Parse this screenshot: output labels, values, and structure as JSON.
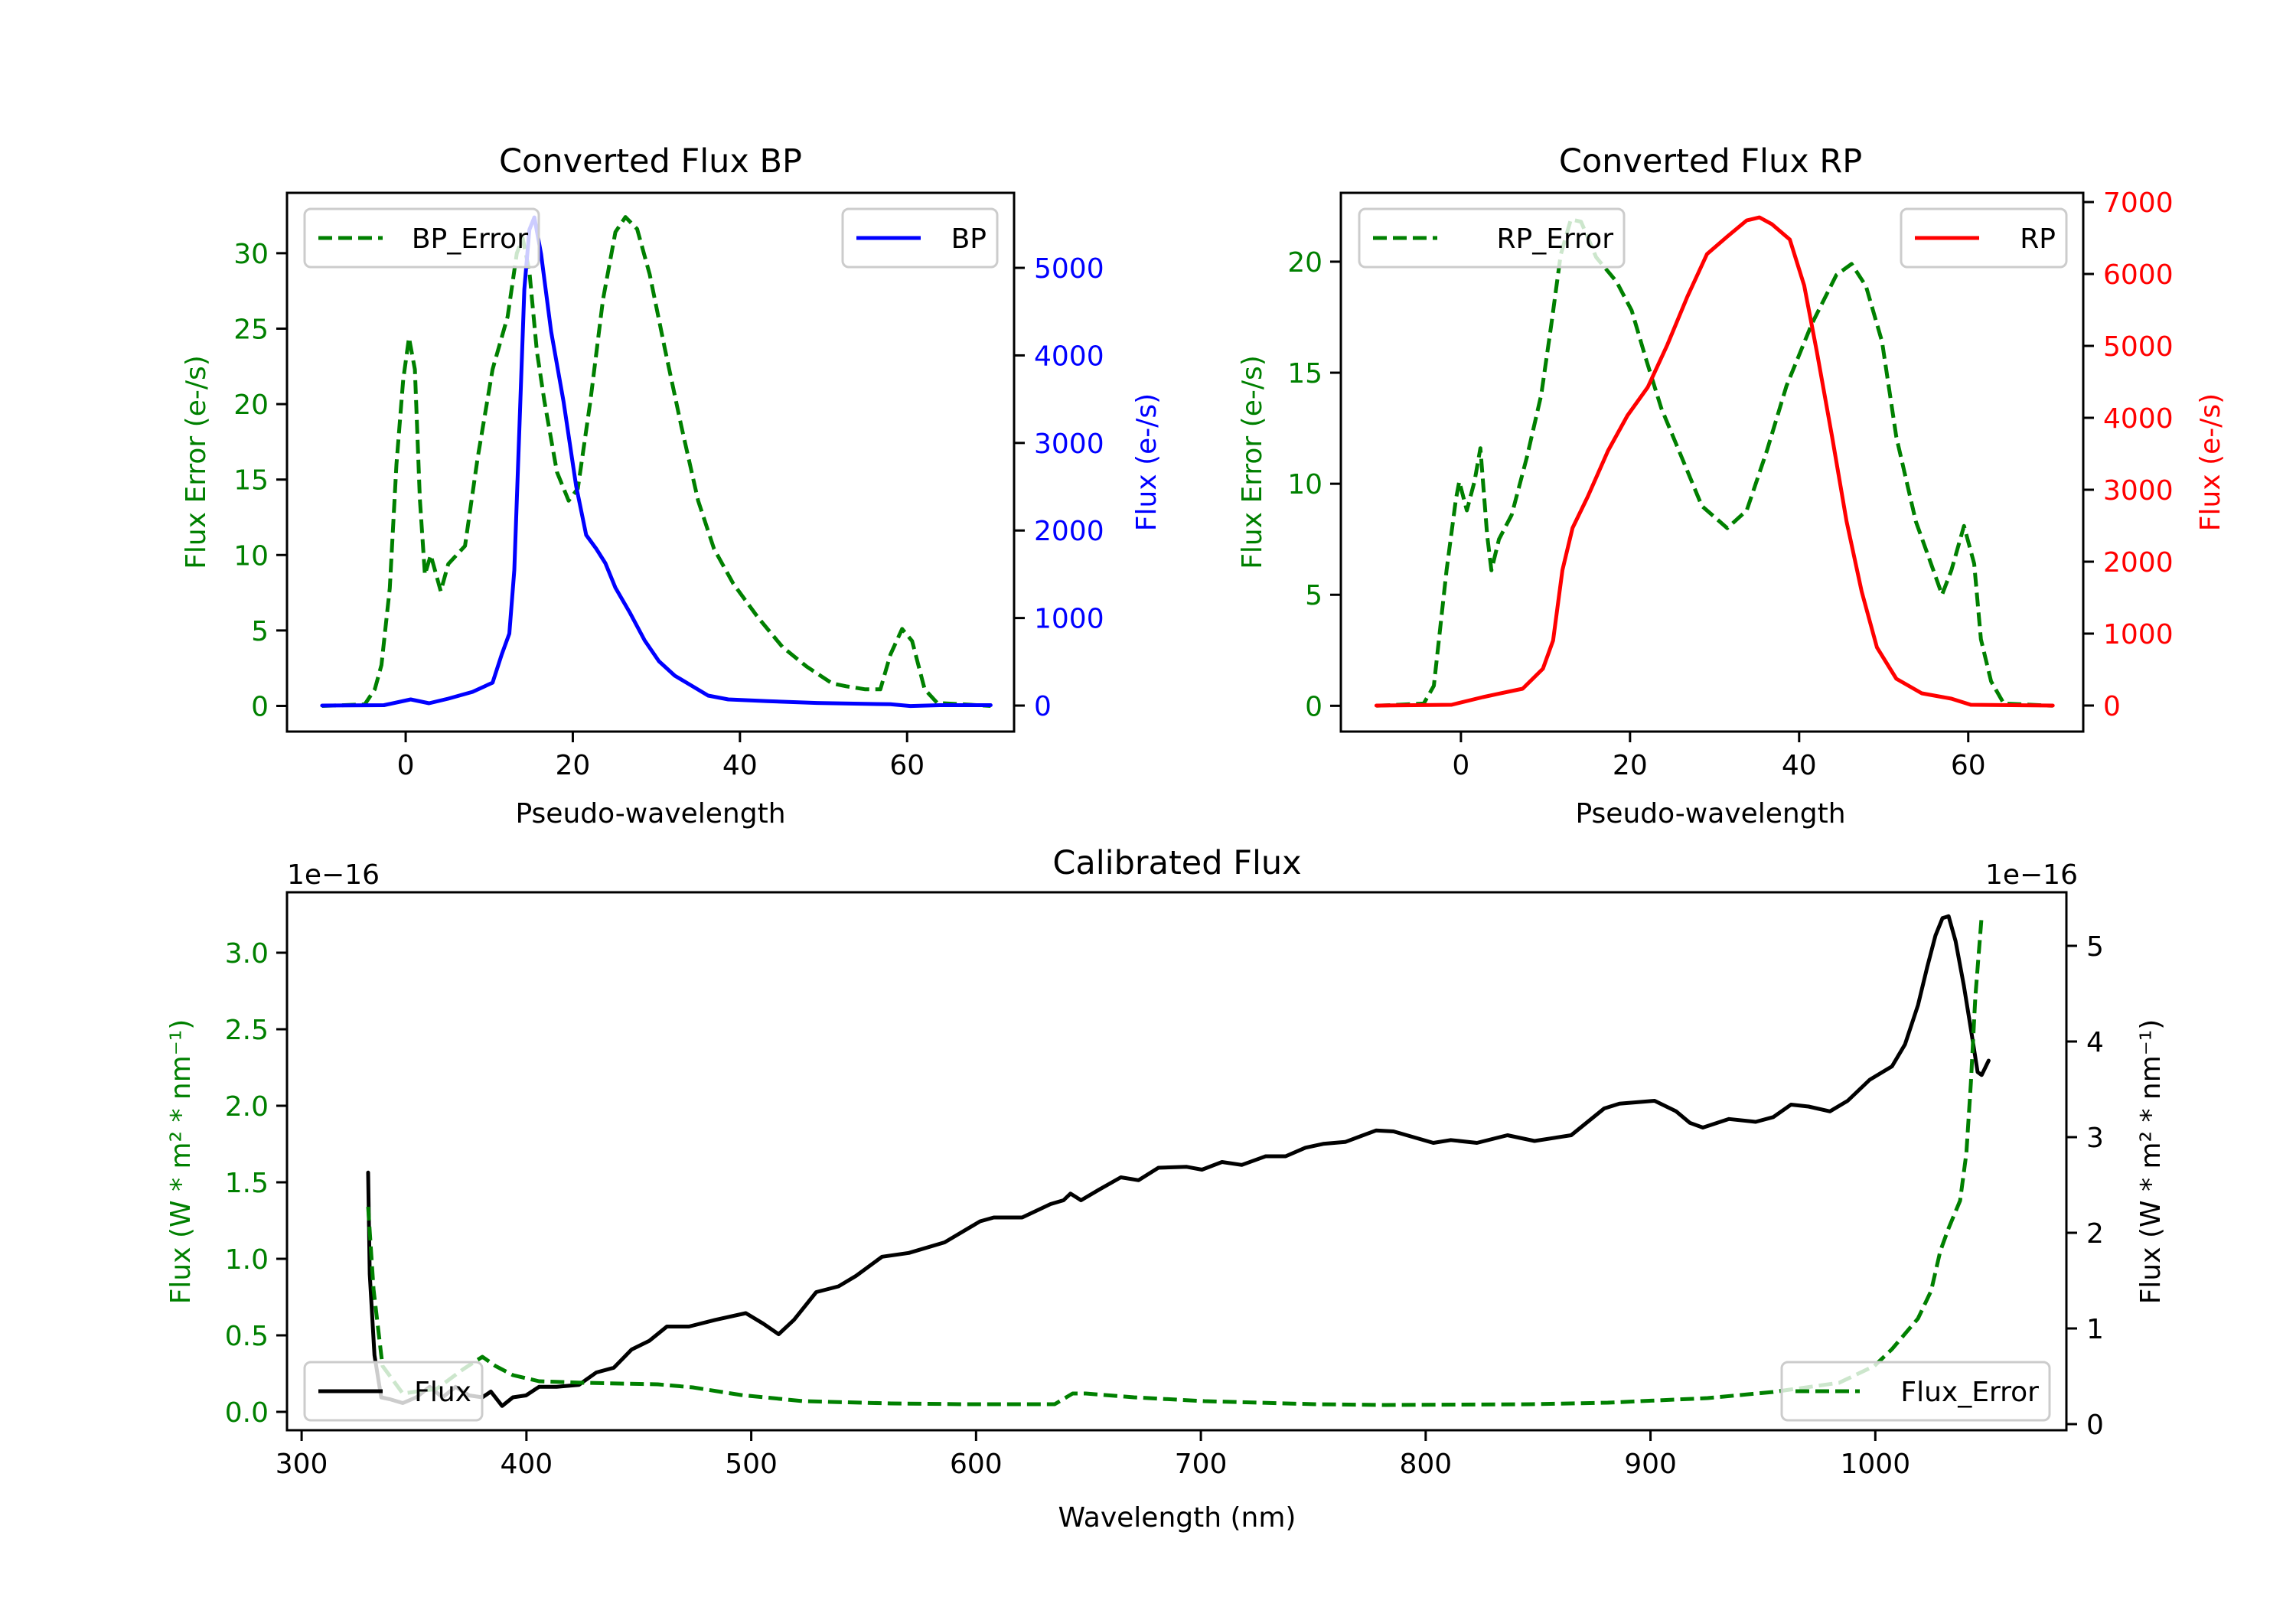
{
  "figure": {
    "background": "#ffffff"
  },
  "chart_data": [
    {
      "id": "bp",
      "type": "line",
      "title": "Converted Flux BP",
      "xlabel": "Pseudo-wavelength",
      "xlim": [
        -14.2,
        72.8
      ],
      "xticks": [
        0,
        20,
        40,
        60
      ],
      "left_axis": {
        "label": "Flux Error (e-/s)",
        "color": "#008000",
        "ylim": [
          -1.7,
          34.0
        ],
        "ticks": [
          0,
          5,
          10,
          15,
          20,
          25,
          30
        ]
      },
      "right_axis": {
        "label": "Flux (e-/s)",
        "color": "#0000ff",
        "ylim": [
          -297,
          5857
        ],
        "ticks": [
          0,
          1000,
          2000,
          3000,
          4000,
          5000
        ]
      },
      "series": [
        {
          "name": "BP_Error",
          "axis": "left",
          "color": "#008000",
          "style": "dashed",
          "legend": "upper-left",
          "x": [
            -10,
            -4.9,
            -3.7,
            -2.9,
            -1.9,
            -1.1,
            -0.3,
            0.4,
            1.1,
            1.7,
            2.3,
            3.0,
            4.2,
            5.1,
            7.1,
            8.6,
            10.4,
            12.2,
            13.3,
            14.0,
            14.8,
            15.7,
            16.6,
            18.1,
            19.5,
            20.6,
            22.1,
            23.6,
            25.1,
            26.3,
            27.7,
            29.2,
            31.0,
            33.0,
            35.0,
            36.9,
            39.2,
            42.1,
            45.1,
            48.0,
            51.0,
            52.7,
            55.0,
            56.8,
            58.0,
            59.4,
            60.6,
            62.1,
            63.6,
            70
          ],
          "y": [
            0,
            0.1,
            1.1,
            2.7,
            7.8,
            16.0,
            21.6,
            24.4,
            22.3,
            13.7,
            8.7,
            10.0,
            7.6,
            9.4,
            10.6,
            16.4,
            22.3,
            25.8,
            30.0,
            31.0,
            28.8,
            23.5,
            20.2,
            15.5,
            13.6,
            14.4,
            20.2,
            26.9,
            31.4,
            32.4,
            31.6,
            28.6,
            23.7,
            18.5,
            13.6,
            10.4,
            8.1,
            5.9,
            3.9,
            2.6,
            1.5,
            1.3,
            1.1,
            1.1,
            3.4,
            5.1,
            4.3,
            1.1,
            0.2,
            0
          ]
        },
        {
          "name": "BP",
          "axis": "right",
          "color": "#0000ff",
          "style": "solid",
          "legend": "upper-right",
          "x": [
            -10,
            -2.6,
            0.6,
            2.8,
            5.1,
            8.0,
            10.4,
            11.5,
            12.4,
            13.0,
            13.6,
            14.2,
            14.8,
            15.4,
            16.2,
            17.4,
            18.9,
            20.4,
            21.6,
            22.8,
            23.9,
            25.1,
            26.8,
            28.6,
            30.3,
            32.2,
            33.9,
            36.2,
            38.6,
            43.3,
            49.2,
            58.0,
            60.4,
            63.9,
            70
          ],
          "y": [
            0,
            5,
            70,
            26,
            79,
            157,
            262,
            585,
            822,
            1547,
            3155,
            4755,
            5436,
            5576,
            5157,
            4274,
            3470,
            2508,
            1949,
            1792,
            1626,
            1346,
            1066,
            743,
            507,
            341,
            245,
            114,
            70,
            50,
            30,
            15,
            -5,
            5,
            5
          ]
        }
      ]
    },
    {
      "id": "rp",
      "type": "line",
      "title": "Converted Flux RP",
      "xlabel": "Pseudo-wavelength",
      "xlim": [
        -14.2,
        73.6
      ],
      "xticks": [
        0,
        20,
        40,
        60
      ],
      "left_axis": {
        "label": "Flux Error (e-/s)",
        "color": "#008000",
        "ylim": [
          -1.16,
          23.1
        ],
        "ticks": [
          0,
          5,
          10,
          15,
          20
        ]
      },
      "right_axis": {
        "label": "Flux (e-/s)",
        "color": "#ff0000",
        "ylim": [
          -362,
          7128
        ],
        "ticks": [
          0,
          1000,
          2000,
          3000,
          4000,
          5000,
          6000,
          7000
        ]
      },
      "series": [
        {
          "name": "RP_Error",
          "axis": "left",
          "color": "#008000",
          "style": "dashed",
          "legend": "upper-left",
          "x": [
            -10,
            -4.4,
            -3.2,
            -2.6,
            -1.7,
            -0.6,
            -0.2,
            0.7,
            1.6,
            2.3,
            3.1,
            3.6,
            4.5,
            6.0,
            7.8,
            9.5,
            10.7,
            11.8,
            13.0,
            14.2,
            16.0,
            18.4,
            20.2,
            21.9,
            23.7,
            26.1,
            28.5,
            31.5,
            33.8,
            36.2,
            38.5,
            41.5,
            44.4,
            46.2,
            47.9,
            49.8,
            51.5,
            53.8,
            55.6,
            56.9,
            58.0,
            59.5,
            60.7,
            61.5,
            62.7,
            64.2,
            70
          ],
          "y": [
            0,
            0.1,
            0.9,
            3.0,
            6.1,
            9.3,
            10.1,
            8.8,
            10.1,
            11.6,
            7.7,
            6.1,
            7.5,
            8.6,
            11.2,
            14.0,
            17.2,
            20.3,
            21.9,
            21.8,
            20.2,
            19.1,
            17.8,
            15.6,
            13.4,
            11.2,
            9.0,
            8.0,
            8.8,
            11.5,
            14.4,
            17.2,
            19.4,
            19.9,
            18.9,
            16.4,
            12.1,
            8.3,
            6.4,
            5.0,
            6.1,
            8.1,
            6.4,
            3.0,
            1.1,
            0.1,
            0
          ]
        },
        {
          "name": "RP",
          "axis": "right",
          "color": "#ff0000",
          "style": "solid",
          "legend": "upper-right",
          "x": [
            -10,
            -1.1,
            2.6,
            4.3,
            7.3,
            9.7,
            10.9,
            12.0,
            13.2,
            15.0,
            17.4,
            19.7,
            22.1,
            24.4,
            26.8,
            29.1,
            31.5,
            33.8,
            35.3,
            36.8,
            38.9,
            40.6,
            42.1,
            43.9,
            45.6,
            47.4,
            49.2,
            51.5,
            54.5,
            58.0,
            60.3,
            70
          ],
          "y": [
            0,
            10,
            117,
            160,
            234,
            511,
            904,
            1883,
            2468,
            2904,
            3543,
            4032,
            4426,
            5011,
            5691,
            6277,
            6521,
            6745,
            6787,
            6691,
            6479,
            5840,
            4915,
            3734,
            2564,
            1585,
            809,
            372,
            170,
            96,
            10,
            0
          ]
        }
      ]
    },
    {
      "id": "calibrated",
      "type": "line",
      "title": "Calibrated Flux",
      "xlabel": "Wavelength (nm)",
      "xlim": [
        293.5,
        1085
      ],
      "xticks": [
        300,
        400,
        500,
        600,
        700,
        800,
        900,
        1000
      ],
      "left_axis": {
        "label": "Flux (W * m² * nm⁻¹)",
        "color": "#008000",
        "offset_text": "1e−16",
        "ylim": [
          -0.12,
          3.395
        ],
        "ticks": [
          0.0,
          0.5,
          1.0,
          1.5,
          2.0,
          2.5,
          3.0
        ],
        "tick_format": 1
      },
      "right_axis": {
        "label": "Flux (W * m² * nm⁻¹)",
        "color": "#000000",
        "offset_text": "1e−16",
        "ylim": [
          -0.064,
          5.56
        ],
        "ticks": [
          0,
          1,
          2,
          3,
          4,
          5
        ],
        "tick_format": 0
      },
      "series": [
        {
          "name": "Flux",
          "axis": "right",
          "color": "#000000",
          "style": "solid",
          "legend": "lower-left",
          "x": [
            329.6,
            330.3,
            332.4,
            335.4,
            339.3,
            345,
            351,
            357,
            362.7,
            368.5,
            374.5,
            380.4,
            384.2,
            389.2,
            394,
            399.8,
            405.6,
            413.4,
            423.3,
            431.1,
            438.9,
            446.8,
            454.6,
            462.5,
            472.3,
            484,
            497.6,
            505.4,
            512.2,
            519,
            528.9,
            538.8,
            546.6,
            558.2,
            570.1,
            586,
            601.8,
            607.9,
            620.5,
            633.1,
            638.9,
            642,
            646.7,
            654.6,
            664.4,
            672.3,
            681.1,
            693.7,
            700.5,
            709.4,
            718.2,
            728.8,
            737.7,
            746.5,
            754.4,
            764.2,
            777.9,
            785.7,
            803.4,
            811.2,
            822.8,
            836.4,
            848.4,
            864.7,
            879.4,
            886.2,
            901.8,
            911.4,
            917.5,
            923.3,
            934.9,
            946.8,
            954.6,
            962.5,
            970.3,
            979.8,
            987.7,
            997.5,
            1007.4,
            1013.2,
            1019,
            1023.1,
            1026.8,
            1029.9,
            1032.6,
            1035.7,
            1039.4,
            1042.5,
            1045.5,
            1047.3,
            1050.4
          ],
          "y": [
            2.63,
            1.57,
            0.72,
            0.28,
            0.26,
            0.22,
            0.28,
            0.39,
            0.28,
            0.39,
            0.3,
            0.28,
            0.34,
            0.19,
            0.28,
            0.3,
            0.39,
            0.39,
            0.41,
            0.54,
            0.59,
            0.78,
            0.87,
            1.02,
            1.02,
            1.09,
            1.16,
            1.05,
            0.94,
            1.09,
            1.38,
            1.44,
            1.55,
            1.75,
            1.79,
            1.9,
            2.12,
            2.16,
            2.16,
            2.3,
            2.34,
            2.41,
            2.34,
            2.45,
            2.58,
            2.55,
            2.68,
            2.69,
            2.66,
            2.74,
            2.71,
            2.8,
            2.8,
            2.89,
            2.93,
            2.95,
            3.07,
            3.06,
            2.94,
            2.97,
            2.94,
            3.02,
            2.96,
            3.02,
            3.3,
            3.35,
            3.38,
            3.27,
            3.15,
            3.1,
            3.19,
            3.16,
            3.21,
            3.34,
            3.32,
            3.27,
            3.38,
            3.6,
            3.74,
            3.97,
            4.38,
            4.78,
            5.11,
            5.29,
            5.31,
            5.05,
            4.58,
            4.13,
            3.68,
            3.65,
            3.8
          ]
        },
        {
          "name": "Flux_Error",
          "axis": "left",
          "color": "#008000",
          "style": "dashed",
          "legend": "lower-right",
          "x": [
            329.6,
            332,
            336,
            345,
            360,
            372,
            380.4,
            386.2,
            394,
            405.6,
            425.4,
            458.4,
            474,
            495.5,
            523.1,
            562.3,
            595,
            635,
            643,
            648.8,
            670.2,
            701.6,
            750.6,
            782,
            847,
            881,
            925.4,
            954.6,
            983.9,
            999.6,
            1007.4,
            1019,
            1024.8,
            1028.9,
            1032.6,
            1037.7,
            1040.5,
            1042.5,
            1044.5,
            1047.3
          ],
          "y": [
            1.34,
            0.8,
            0.3,
            0.12,
            0.15,
            0.28,
            0.36,
            0.3,
            0.24,
            0.2,
            0.19,
            0.18,
            0.16,
            0.11,
            0.07,
            0.055,
            0.05,
            0.05,
            0.12,
            0.12,
            0.095,
            0.07,
            0.05,
            0.045,
            0.05,
            0.06,
            0.09,
            0.13,
            0.19,
            0.3,
            0.41,
            0.61,
            0.79,
            1.05,
            1.2,
            1.38,
            1.69,
            2.15,
            2.71,
            3.24
          ]
        }
      ]
    }
  ]
}
